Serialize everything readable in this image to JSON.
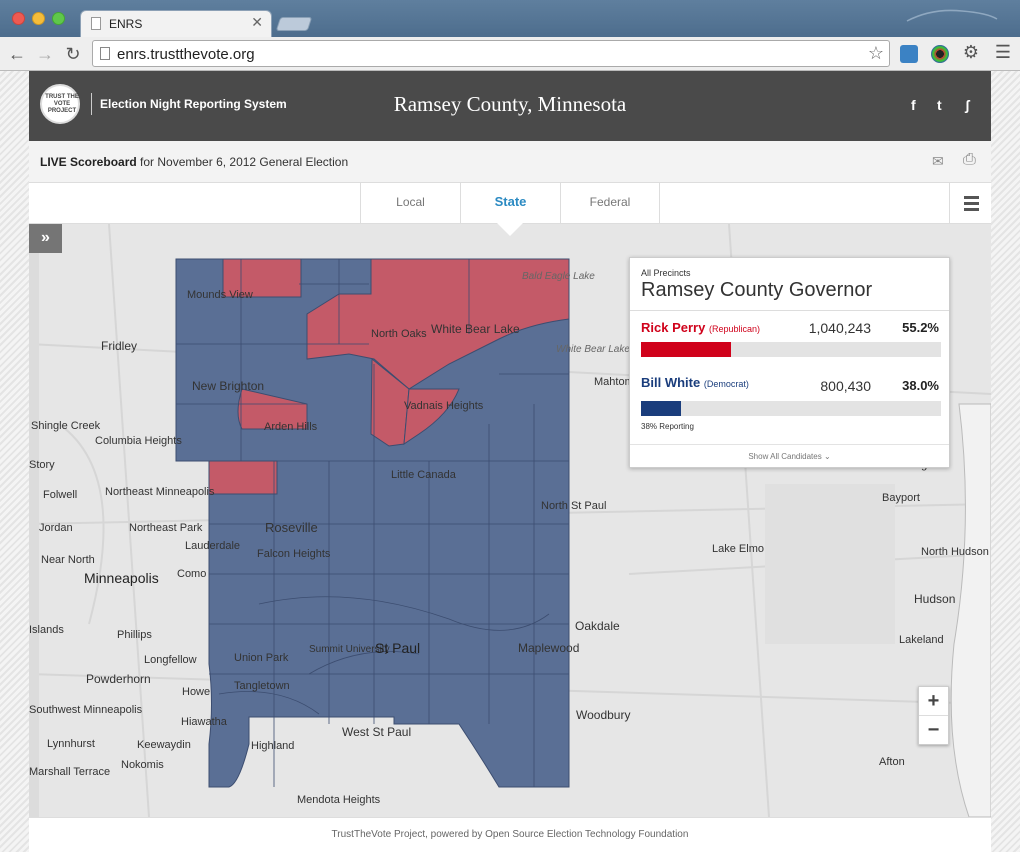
{
  "browser": {
    "tab_title": "ENRS",
    "tab_close": "✕",
    "url": "enrs.trustthevote.org",
    "back": "←",
    "forward": "→",
    "reload": "↻",
    "star": "☆",
    "menu": "☰",
    "settings": "⚙"
  },
  "header": {
    "logo_text": "TRUST THE VOTE PROJECT",
    "system_name": "Election Night Reporting System",
    "county": "Ramsey County, Minnesota",
    "social": {
      "facebook": "f",
      "twitter": "t",
      "rss": "ʃ"
    }
  },
  "subbar": {
    "live_label": "LIVE Scoreboard",
    "live_suffix": " for November 6, 2012 General Election",
    "email_icon": "✉",
    "print_icon": "⎙"
  },
  "tabs": [
    {
      "label": "Local",
      "active": false
    },
    {
      "label": "State",
      "active": true
    },
    {
      "label": "Federal",
      "active": false
    }
  ],
  "map": {
    "expand_label": "»",
    "labels": [
      "Mounds View",
      "North Oaks",
      "White Bear Lake",
      "White Bear Lake",
      "Bald Eagle Lake",
      "Fridley",
      "New Brighton",
      "Arden Hills",
      "Vadnais Heights",
      "Mahtomedi",
      "Shingle Creek",
      "Columbia Heights",
      "Little Canada",
      "Northeast Minneapolis",
      "North St Paul",
      "Jordan",
      "Northeast Park",
      "Lauderdale",
      "Roseville",
      "Falcon Heights",
      "Near North",
      "Minneapolis",
      "Como",
      "Lake Elmo",
      "North Hudson",
      "Bayport",
      "Hudson",
      "Oakdale",
      "Phillips",
      "Longfellow",
      "Powderhorn",
      "Union Park",
      "Summit University",
      "St Paul",
      "Maplewood",
      "Tangletown",
      "Howe",
      "Hiawatha",
      "Woodbury",
      "Highland",
      "Keewaydin",
      "West St Paul",
      "Nokomis",
      "Afton",
      "Lakeland",
      "Lynnhurst",
      "Mendota Heights",
      "Story",
      "Folwell",
      "Southwest Minneapolis",
      "Marshall Terrace",
      "Islands",
      "Stillwater Heights"
    ]
  },
  "results": {
    "precinct_label": "All Precincts",
    "title": "Ramsey County Governor",
    "candidates": [
      {
        "name": "Rick Perry",
        "party": "(Republican)",
        "votes": "1,040,243",
        "pct": "55.2%",
        "share": 0.552,
        "color": "#d0021b"
      },
      {
        "name": "Bill White",
        "party": "(Democrat)",
        "votes": "800,430",
        "pct": "38.0%",
        "share": 0.38,
        "color": "#1a3d7c"
      }
    ],
    "reporting": "38% Reporting",
    "show_all": "Show All Candidates"
  },
  "zoom": {
    "in": "+",
    "out": "−"
  },
  "footer": "TrustTheVote Project, powered by Open Source Election Technology Foundation",
  "colors": {
    "republican": "#c45a68",
    "democrat": "#5a6f95"
  }
}
